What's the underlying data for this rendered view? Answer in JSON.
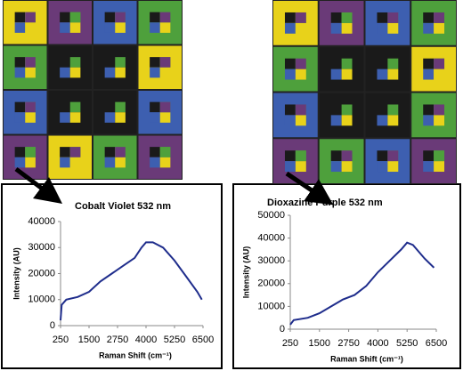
{
  "chart_data": [
    {
      "type": "line",
      "title": "Cobalt Violet 532 nm",
      "x_label": "Raman Shift (cm⁻¹)",
      "y_label": "Intensity (AU)",
      "x": [
        250,
        300,
        500,
        1000,
        1500,
        2000,
        2500,
        3000,
        3500,
        3800,
        4000,
        4300,
        4750,
        5250,
        5750,
        6250,
        6450
      ],
      "values": [
        2000,
        8000,
        10000,
        11000,
        13000,
        17000,
        20000,
        23000,
        26000,
        30000,
        32000,
        32000,
        30000,
        25000,
        19000,
        13000,
        10000
      ],
      "color": "#1f2d8c",
      "xlim": [
        250,
        6500
      ],
      "xticks": [
        250,
        1500,
        2750,
        4000,
        5250,
        6500
      ],
      "ylim": [
        0,
        40000
      ],
      "yticks": [
        0,
        10000,
        20000,
        30000,
        40000
      ]
    },
    {
      "type": "line",
      "title": "Dioxazine Purple 532 nm",
      "x_label": "Raman Shift (cm⁻¹)",
      "y_label": "Intensity (AU)",
      "x": [
        250,
        400,
        1000,
        1500,
        2000,
        2500,
        3000,
        3500,
        4000,
        4500,
        5000,
        5250,
        5500,
        6000,
        6400
      ],
      "values": [
        2000,
        4000,
        5000,
        7000,
        10000,
        13000,
        15000,
        19000,
        25000,
        30000,
        35000,
        38000,
        37000,
        31000,
        27000
      ],
      "color": "#1f2d8c",
      "xlim": [
        250,
        6500
      ],
      "xticks": [
        250,
        1500,
        2750,
        4000,
        5250,
        6500
      ],
      "ylim": [
        0,
        50000
      ],
      "yticks": [
        0,
        10000,
        20000,
        30000,
        40000,
        50000
      ]
    }
  ]
}
